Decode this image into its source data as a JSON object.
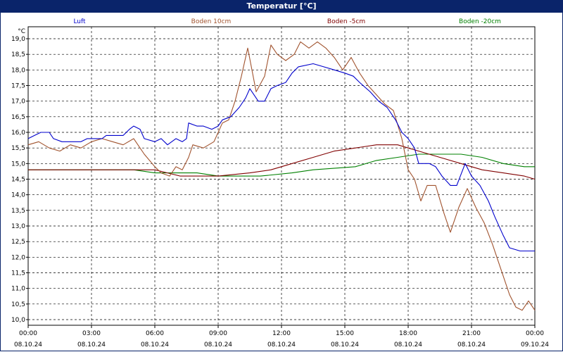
{
  "window": {
    "title": "Temperatur [°C]"
  },
  "chart_data": {
    "type": "line",
    "title": "Temperatur [°C]",
    "ylabel": "°C",
    "ylim": [
      10.0,
      19.0
    ],
    "yticks": [
      "19,0",
      "18,5",
      "18,0",
      "17,5",
      "17,0",
      "16,5",
      "16,0",
      "15,5",
      "15,0",
      "14,5",
      "14,0",
      "13,5",
      "13,0",
      "12,5",
      "12,0",
      "11,5",
      "11,0",
      "10,5",
      "10,0"
    ],
    "xlim": [
      0,
      24
    ],
    "xticks": [
      {
        "time": "00:00",
        "date": "08.10.24"
      },
      {
        "time": "03:00",
        "date": "08.10.24"
      },
      {
        "time": "06:00",
        "date": "08.10.24"
      },
      {
        "time": "09:00",
        "date": "08.10.24"
      },
      {
        "time": "12:00",
        "date": "08.10.24"
      },
      {
        "time": "15:00",
        "date": "08.10.24"
      },
      {
        "time": "18:00",
        "date": "08.10.24"
      },
      {
        "time": "21:00",
        "date": "08.10.24"
      },
      {
        "time": "00:00",
        "date": "09.10.24"
      }
    ],
    "grid": true,
    "legend_position": "top",
    "series": [
      {
        "name": "Luft",
        "color": "#0000cc",
        "points": [
          [
            0,
            15.8
          ],
          [
            0.3,
            15.9
          ],
          [
            0.6,
            16.0
          ],
          [
            1.0,
            16.0
          ],
          [
            1.2,
            15.8
          ],
          [
            1.6,
            15.7
          ],
          [
            2.5,
            15.7
          ],
          [
            2.8,
            15.8
          ],
          [
            3.0,
            15.8
          ],
          [
            3.5,
            15.8
          ],
          [
            3.7,
            15.9
          ],
          [
            4.5,
            15.9
          ],
          [
            4.8,
            16.1
          ],
          [
            5.0,
            16.2
          ],
          [
            5.3,
            16.1
          ],
          [
            5.5,
            15.8
          ],
          [
            6.0,
            15.7
          ],
          [
            6.3,
            15.8
          ],
          [
            6.6,
            15.6
          ],
          [
            7.0,
            15.8
          ],
          [
            7.3,
            15.7
          ],
          [
            7.5,
            15.8
          ],
          [
            7.6,
            16.3
          ],
          [
            8.0,
            16.2
          ],
          [
            8.3,
            16.2
          ],
          [
            8.7,
            16.1
          ],
          [
            9.0,
            16.2
          ],
          [
            9.2,
            16.4
          ],
          [
            9.6,
            16.5
          ],
          [
            10.0,
            16.8
          ],
          [
            10.3,
            17.1
          ],
          [
            10.5,
            17.4
          ],
          [
            10.9,
            17.0
          ],
          [
            11.2,
            17.0
          ],
          [
            11.5,
            17.4
          ],
          [
            11.8,
            17.5
          ],
          [
            12.2,
            17.6
          ],
          [
            12.5,
            17.9
          ],
          [
            12.8,
            18.1
          ],
          [
            13.5,
            18.2
          ],
          [
            14.0,
            18.1
          ],
          [
            14.5,
            18.0
          ],
          [
            15.0,
            17.9
          ],
          [
            15.4,
            17.8
          ],
          [
            15.7,
            17.6
          ],
          [
            16.2,
            17.3
          ],
          [
            16.6,
            17.0
          ],
          [
            17.0,
            16.8
          ],
          [
            17.4,
            16.4
          ],
          [
            17.7,
            16.0
          ],
          [
            18.0,
            15.8
          ],
          [
            18.3,
            15.5
          ],
          [
            18.5,
            15.0
          ],
          [
            19.0,
            15.0
          ],
          [
            19.3,
            14.9
          ],
          [
            19.6,
            14.6
          ],
          [
            20.0,
            14.3
          ],
          [
            20.3,
            14.3
          ],
          [
            20.7,
            15.0
          ],
          [
            21.0,
            14.6
          ],
          [
            21.4,
            14.3
          ],
          [
            21.8,
            13.8
          ],
          [
            22.1,
            13.3
          ],
          [
            22.5,
            12.7
          ],
          [
            22.8,
            12.3
          ],
          [
            23.3,
            12.2
          ],
          [
            23.7,
            12.2
          ],
          [
            24.0,
            12.2
          ]
        ]
      },
      {
        "name": "Boden 10cm",
        "color": "#a0522d",
        "points": [
          [
            0,
            15.6
          ],
          [
            0.5,
            15.7
          ],
          [
            1.0,
            15.5
          ],
          [
            1.5,
            15.4
          ],
          [
            2.0,
            15.6
          ],
          [
            2.5,
            15.5
          ],
          [
            3.0,
            15.7
          ],
          [
            3.5,
            15.8
          ],
          [
            4.0,
            15.7
          ],
          [
            4.5,
            15.6
          ],
          [
            5.0,
            15.8
          ],
          [
            5.5,
            15.3
          ],
          [
            6.0,
            14.9
          ],
          [
            6.3,
            14.7
          ],
          [
            6.7,
            14.6
          ],
          [
            7.0,
            14.9
          ],
          [
            7.3,
            14.8
          ],
          [
            7.6,
            15.2
          ],
          [
            7.8,
            15.6
          ],
          [
            8.3,
            15.5
          ],
          [
            8.8,
            15.7
          ],
          [
            9.2,
            16.3
          ],
          [
            9.5,
            16.4
          ],
          [
            9.8,
            17.0
          ],
          [
            10.1,
            17.8
          ],
          [
            10.4,
            18.7
          ],
          [
            10.8,
            17.3
          ],
          [
            11.2,
            17.8
          ],
          [
            11.5,
            18.8
          ],
          [
            11.8,
            18.5
          ],
          [
            12.2,
            18.3
          ],
          [
            12.6,
            18.5
          ],
          [
            12.9,
            18.9
          ],
          [
            13.3,
            18.7
          ],
          [
            13.7,
            18.9
          ],
          [
            14.1,
            18.7
          ],
          [
            14.5,
            18.4
          ],
          [
            14.9,
            18.0
          ],
          [
            15.3,
            18.4
          ],
          [
            15.7,
            17.9
          ],
          [
            16.1,
            17.5
          ],
          [
            16.5,
            17.2
          ],
          [
            16.9,
            16.9
          ],
          [
            17.3,
            16.7
          ],
          [
            17.7,
            15.8
          ],
          [
            18.0,
            14.8
          ],
          [
            18.3,
            14.5
          ],
          [
            18.6,
            13.8
          ],
          [
            18.9,
            14.3
          ],
          [
            19.3,
            14.3
          ],
          [
            19.7,
            13.4
          ],
          [
            20.0,
            12.8
          ],
          [
            20.4,
            13.6
          ],
          [
            20.8,
            14.2
          ],
          [
            21.2,
            13.6
          ],
          [
            21.6,
            13.1
          ],
          [
            22.0,
            12.4
          ],
          [
            22.4,
            11.6
          ],
          [
            22.8,
            10.8
          ],
          [
            23.1,
            10.4
          ],
          [
            23.4,
            10.3
          ],
          [
            23.7,
            10.6
          ],
          [
            24.0,
            10.3
          ]
        ]
      },
      {
        "name": "Boden -5cm",
        "color": "#800000",
        "points": [
          [
            0,
            14.8
          ],
          [
            1,
            14.8
          ],
          [
            3,
            14.8
          ],
          [
            5,
            14.8
          ],
          [
            6,
            14.8
          ],
          [
            6.6,
            14.7
          ],
          [
            7.2,
            14.6
          ],
          [
            8,
            14.6
          ],
          [
            9,
            14.6
          ],
          [
            10.5,
            14.7
          ],
          [
            11.5,
            14.8
          ],
          [
            12.5,
            15.0
          ],
          [
            13.5,
            15.2
          ],
          [
            14.5,
            15.4
          ],
          [
            15.5,
            15.5
          ],
          [
            16.5,
            15.6
          ],
          [
            17.5,
            15.6
          ],
          [
            18.0,
            15.5
          ],
          [
            18.5,
            15.4
          ],
          [
            19.5,
            15.2
          ],
          [
            20.5,
            15.0
          ],
          [
            21.5,
            14.8
          ],
          [
            22.5,
            14.7
          ],
          [
            23.5,
            14.6
          ],
          [
            24.0,
            14.5
          ]
        ]
      },
      {
        "name": "Boden -20cm",
        "color": "#008000",
        "points": [
          [
            0,
            14.8
          ],
          [
            2,
            14.8
          ],
          [
            5,
            14.8
          ],
          [
            6,
            14.7
          ],
          [
            8,
            14.7
          ],
          [
            9,
            14.6
          ],
          [
            11,
            14.6
          ],
          [
            12.5,
            14.7
          ],
          [
            13.5,
            14.8
          ],
          [
            15.5,
            14.9
          ],
          [
            16.5,
            15.1
          ],
          [
            17.5,
            15.2
          ],
          [
            18.5,
            15.3
          ],
          [
            20.5,
            15.3
          ],
          [
            21.5,
            15.2
          ],
          [
            22.5,
            15.0
          ],
          [
            23.5,
            14.9
          ],
          [
            24.0,
            14.9
          ]
        ]
      }
    ]
  }
}
